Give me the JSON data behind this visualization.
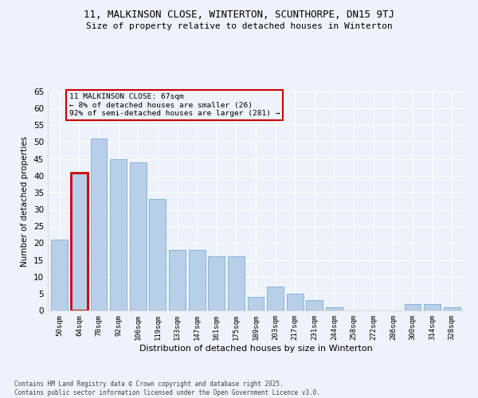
{
  "title_line1": "11, MALKINSON CLOSE, WINTERTON, SCUNTHORPE, DN15 9TJ",
  "title_line2": "Size of property relative to detached houses in Winterton",
  "xlabel": "Distribution of detached houses by size in Winterton",
  "ylabel": "Number of detached properties",
  "categories": [
    "50sqm",
    "64sqm",
    "78sqm",
    "92sqm",
    "106sqm",
    "119sqm",
    "133sqm",
    "147sqm",
    "161sqm",
    "175sqm",
    "189sqm",
    "203sqm",
    "217sqm",
    "231sqm",
    "244sqm",
    "258sqm",
    "272sqm",
    "286sqm",
    "300sqm",
    "314sqm",
    "328sqm"
  ],
  "values": [
    21,
    41,
    51,
    45,
    44,
    33,
    18,
    18,
    16,
    16,
    4,
    7,
    5,
    3,
    1,
    0,
    0,
    0,
    2,
    2,
    1
  ],
  "bar_color": "#b8cfe8",
  "bar_edge_color": "#7aadd4",
  "highlight_bar_index": 1,
  "highlight_bar_edge_color": "#cc0000",
  "annotation_box_text": "11 MALKINSON CLOSE: 67sqm\n← 8% of detached houses are smaller (26)\n92% of semi-detached houses are larger (281) →",
  "ylim": [
    0,
    65
  ],
  "yticks": [
    0,
    5,
    10,
    15,
    20,
    25,
    30,
    35,
    40,
    45,
    50,
    55,
    60,
    65
  ],
  "background_color": "#eef2fa",
  "grid_color": "#ffffff",
  "footnote": "Contains HM Land Registry data © Crown copyright and database right 2025.\nContains public sector information licensed under the Open Government Licence v3.0."
}
